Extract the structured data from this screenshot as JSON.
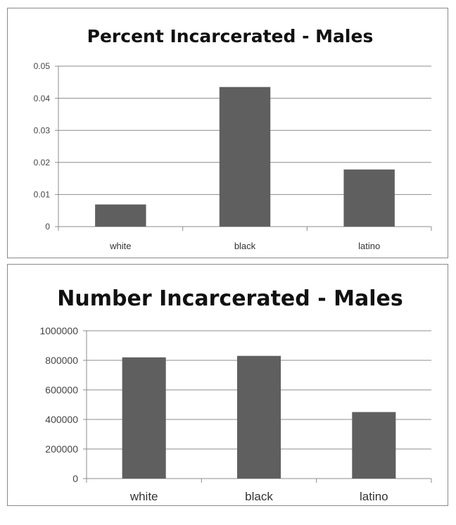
{
  "chart_data": [
    {
      "type": "bar",
      "title": "Percent Incarcerated - Males",
      "categories": [
        "white",
        "black",
        "latino"
      ],
      "values": [
        0.0069,
        0.0435,
        0.0178
      ],
      "ylim": [
        0,
        0.05
      ],
      "yticks": [
        "0",
        "0.01",
        "0.02",
        "0.03",
        "0.04",
        "0.05"
      ],
      "xlabel": "",
      "ylabel": "",
      "grid": true,
      "bar_color": "#5f5f5f"
    },
    {
      "type": "bar",
      "title": "Number Incarcerated - Males",
      "categories": [
        "white",
        "black",
        "latino"
      ],
      "values": [
        820000,
        830000,
        450000
      ],
      "ylim": [
        0,
        1000000
      ],
      "yticks": [
        "0",
        "200000",
        "400000",
        "600000",
        "800000",
        "1000000"
      ],
      "xlabel": "",
      "ylabel": "",
      "grid": true,
      "bar_color": "#5f5f5f"
    }
  ]
}
